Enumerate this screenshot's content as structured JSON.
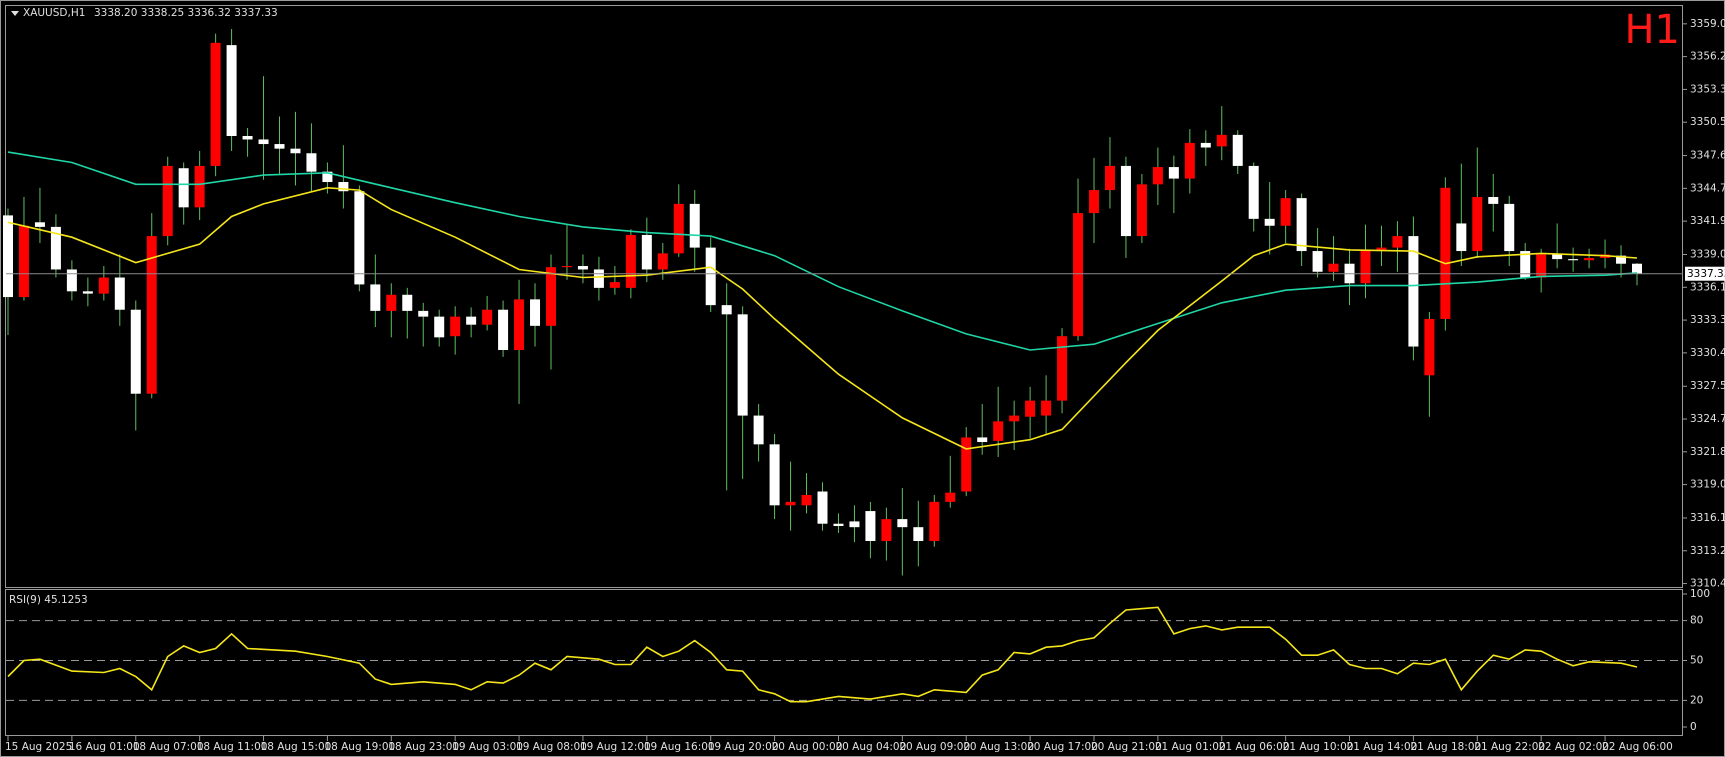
{
  "chart_data": [
    {
      "type": "candlestick",
      "title": "XAUUSD,H1",
      "ohlc": "3338.20 3338.25 3336.32 3337.33",
      "timeframe": "H1",
      "timeframe_color": "#ff1a1a",
      "bull_color": "#ff0000",
      "bear_color": "#ffffff",
      "wick_color": "#5fbf5f",
      "price_line_color": "#8a8a8a",
      "categories": [
        "15 Aug 2025",
        null,
        null,
        null,
        "16 Aug 01:00",
        null,
        null,
        null,
        "18 Aug 07:00",
        null,
        null,
        null,
        "18 Aug 11:00",
        null,
        null,
        null,
        "18 Aug 15:00",
        null,
        null,
        null,
        "18 Aug 19:00",
        null,
        null,
        null,
        "18 Aug 23:00",
        null,
        null,
        null,
        "19 Aug 03:00",
        null,
        null,
        null,
        "19 Aug 08:00",
        null,
        null,
        null,
        "19 Aug 12:00",
        null,
        null,
        null,
        "19 Aug 16:00",
        null,
        null,
        null,
        "19 Aug 20:00",
        null,
        null,
        null,
        "20 Aug 00:00",
        null,
        null,
        null,
        "20 Aug 04:00",
        null,
        null,
        null,
        "20 Aug 09:00",
        null,
        null,
        null,
        "20 Aug 13:00",
        null,
        null,
        null,
        "20 Aug 17:00",
        null,
        null,
        null,
        "20 Aug 21:00",
        null,
        null,
        null,
        "21 Aug 01:00",
        null,
        null,
        null,
        "21 Aug 06:00",
        null,
        null,
        null,
        "21 Aug 10:00",
        null,
        null,
        null,
        "21 Aug 14:00",
        null,
        null,
        null,
        "21 Aug 18:00",
        null,
        null,
        null,
        "21 Aug 22:00",
        null,
        null,
        null,
        "22 Aug 02:00",
        null,
        null,
        null,
        "22 Aug 06:00",
        null,
        null
      ],
      "open": [
        3342.4,
        3335.3,
        3341.8,
        3341.4,
        3337.7,
        3335.8,
        3335.6,
        3337.0,
        3334.2,
        3326.9,
        3340.6,
        3346.5,
        3343.1,
        3346.7,
        3357.2,
        3349.3,
        3349.0,
        3348.6,
        3348.2,
        3347.8,
        3346.2,
        3345.3,
        3344.5,
        3336.4,
        3334.1,
        3335.5,
        3334.1,
        3333.6,
        3331.9,
        3333.6,
        3332.9,
        3334.2,
        3330.7,
        3335.1,
        3332.8,
        3337.9,
        3338.0,
        3337.7,
        3336.1,
        3336.1,
        3340.7,
        3337.7,
        3339.1,
        3343.4,
        3339.6,
        3334.6,
        3333.8,
        3325.0,
        3322.5,
        3317.2,
        3317.2,
        3318.4,
        3315.6,
        3315.8,
        3316.7,
        3314.1,
        3316.0,
        3315.3,
        3314.1,
        3317.5,
        3318.4,
        3323.1,
        3322.8,
        3324.5,
        3324.9,
        3325.0,
        3326.3,
        3331.9,
        3342.6,
        3344.6,
        3346.7,
        3340.6,
        3345.1,
        3346.6,
        3345.6,
        3348.7,
        3348.4,
        3349.4,
        3346.7,
        3342.1,
        3341.5,
        3343.9,
        3339.3,
        3337.5,
        3338.2,
        3336.5,
        3339.4,
        3339.6,
        3340.6,
        3328.5,
        3333.4,
        3341.7,
        3339.3,
        3344.0,
        3343.4,
        3339.3,
        3337.0,
        3339.0,
        3338.6,
        3338.5,
        3338.7,
        3338.9,
        3338.2
      ],
      "high": [
        3343,
        3344,
        3344.8,
        3342.5,
        3338.5,
        3337,
        3338,
        3339,
        3335,
        3342.6,
        3347.5,
        3347,
        3348,
        3358.2,
        3358.6,
        3350,
        3354.5,
        3351,
        3351.4,
        3350.4,
        3347,
        3348.5,
        3345,
        3339,
        3336.5,
        3336.1,
        3334.8,
        3334.2,
        3334.5,
        3334.4,
        3335.4,
        3335,
        3336.8,
        3336.5,
        3339,
        3341.6,
        3339,
        3338.8,
        3338,
        3341.2,
        3342.2,
        3340,
        3345.1,
        3344.6,
        3340.5,
        3336.5,
        3334.5,
        3326,
        3323.4,
        3321,
        3320,
        3319.2,
        3316.5,
        3317.2,
        3317.5,
        3317,
        3318.7,
        3317.6,
        3318.1,
        3321.5,
        3324,
        3326,
        3327.5,
        3326.3,
        3327.5,
        3328.5,
        3332.6,
        3345.6,
        3347.4,
        3349.2,
        3347.5,
        3346,
        3348.3,
        3347.6,
        3349.9,
        3349.8,
        3351.9,
        3349.8,
        3347,
        3345.3,
        3344.6,
        3344.3,
        3341.3,
        3340.6,
        3339.5,
        3341.6,
        3341.5,
        3341.9,
        3342.3,
        3334,
        3345.7,
        3346.9,
        3348.3,
        3346,
        3344.1,
        3340,
        3339.5,
        3341.7,
        3339.6,
        3339.5,
        3340.3,
        3339.8,
        3338.25
      ],
      "low": [
        3332,
        3335,
        3340,
        3337,
        3335,
        3334.5,
        3335,
        3332.8,
        3323.7,
        3326.5,
        3339.8,
        3341.6,
        3342,
        3345.8,
        3348,
        3347.5,
        3345.5,
        3346,
        3345,
        3344.5,
        3344.3,
        3343,
        3335.8,
        3332.7,
        3331.8,
        3331.7,
        3331,
        3331,
        3330.3,
        3331.8,
        3332.4,
        3330.1,
        3326,
        3331,
        3329,
        3336.8,
        3336.5,
        3335,
        3335.5,
        3335.2,
        3336.6,
        3336.8,
        3338.8,
        3337.5,
        3334,
        3318.5,
        3319.5,
        3321,
        3316,
        3315,
        3316.5,
        3315,
        3314.8,
        3314,
        3312.6,
        3312.4,
        3311.1,
        3311.9,
        3313.6,
        3317,
        3318,
        3321.6,
        3321.4,
        3322,
        3323,
        3323.4,
        3325.2,
        3331.5,
        3340,
        3343,
        3338.7,
        3340,
        3343.3,
        3342.6,
        3344.3,
        3346.7,
        3347.2,
        3346,
        3341,
        3339,
        3340,
        3338,
        3337,
        3336.7,
        3334.6,
        3335.2,
        3338,
        3337.5,
        3329.8,
        3324.9,
        3332.4,
        3338,
        3338.7,
        3341,
        3338,
        3336.8,
        3335.7,
        3337.8,
        3337.5,
        3337.8,
        3337.8,
        3337,
        3336.32
      ],
      "close": [
        3335.3,
        3341.5,
        3341.4,
        3337.7,
        3335.8,
        3335.6,
        3337.0,
        3334.2,
        3326.9,
        3340.6,
        3346.7,
        3343.1,
        3346.7,
        3357.4,
        3349.3,
        3349.0,
        3348.6,
        3348.2,
        3347.8,
        3346.2,
        3345.3,
        3344.5,
        3336.4,
        3334.1,
        3335.5,
        3334.1,
        3333.6,
        3331.8,
        3333.6,
        3332.9,
        3334.2,
        3330.7,
        3335.1,
        3332.8,
        3337.9,
        3338.0,
        3337.7,
        3336.1,
        3336.6,
        3340.7,
        3337.7,
        3339.1,
        3343.4,
        3339.6,
        3334.6,
        3333.8,
        3325.0,
        3322.5,
        3317.2,
        3317.5,
        3318.1,
        3315.6,
        3315.4,
        3315.3,
        3314.1,
        3316.0,
        3315.3,
        3314.1,
        3317.5,
        3318.3,
        3323.1,
        3322.7,
        3324.5,
        3325.0,
        3326.3,
        3326.3,
        3331.9,
        3342.6,
        3344.6,
        3346.7,
        3340.6,
        3345.1,
        3346.6,
        3345.6,
        3348.7,
        3348.3,
        3349.4,
        3346.7,
        3342.1,
        3341.5,
        3343.9,
        3339.3,
        3337.5,
        3338.2,
        3336.5,
        3339.4,
        3339.6,
        3340.6,
        3331.0,
        3333.4,
        3344.8,
        3339.3,
        3344.0,
        3343.4,
        3339.3,
        3337.0,
        3339.0,
        3338.6,
        3338.5,
        3338.7,
        3339.0,
        3338.2,
        3337.33
      ],
      "lines": [
        {
          "color": "#1fd6a6",
          "x": [
            0,
            4,
            8,
            12,
            16,
            20,
            24,
            28,
            32,
            36,
            40,
            44,
            48,
            52,
            56,
            60,
            64,
            68,
            72,
            76,
            80,
            84,
            88,
            92,
            96,
            100,
            102
          ],
          "values": [
            3347.9,
            3347.0,
            3345.1,
            3345.1,
            3345.9,
            3346.1,
            3344.8,
            3343.5,
            3342.3,
            3341.4,
            3340.9,
            3340.6,
            3338.9,
            3336.2,
            3334.1,
            3332.1,
            3330.7,
            3331.2,
            3333.0,
            3334.8,
            3335.9,
            3336.3,
            3336.3,
            3336.6,
            3337.1,
            3337.2,
            3337.4
          ]
        },
        {
          "color": "#f5e61a",
          "x": [
            0,
            4,
            8,
            10,
            12,
            14,
            16,
            20,
            22,
            24,
            28,
            32,
            36,
            40,
            44,
            46,
            48,
            52,
            56,
            60,
            64,
            66,
            68,
            70,
            72,
            76,
            78,
            80,
            84,
            88,
            90,
            92,
            96,
            100,
            102
          ],
          "values": [
            3341.8,
            3340.5,
            3338.3,
            3339.1,
            3339.9,
            3342.3,
            3343.4,
            3344.8,
            3344.6,
            3342.9,
            3340.5,
            3337.7,
            3337.0,
            3337.2,
            3337.9,
            3336.0,
            3333.4,
            3328.6,
            3324.8,
            3322.1,
            3322.9,
            3323.8,
            3326.7,
            3329.6,
            3332.4,
            3336.7,
            3338.9,
            3339.9,
            3339.4,
            3339.3,
            3338.2,
            3338.8,
            3339.1,
            3338.9,
            3338.7
          ]
        }
      ],
      "ylim": [
        3310.1,
        3360.6
      ],
      "yticks": [
        {
          "value": 3359.05,
          "label": "3359.05"
        },
        {
          "value": 3356.2,
          "label": "3356.20"
        },
        {
          "value": 3353.35,
          "label": "3353.35"
        },
        {
          "value": 3350.5,
          "label": "3350.50"
        },
        {
          "value": 3347.6,
          "label": "3347.60"
        },
        {
          "value": 3344.75,
          "label": "3344.75"
        },
        {
          "value": 3341.9,
          "label": "3341.90"
        },
        {
          "value": 3339.0,
          "label": "3339.00"
        },
        {
          "value": 3336.15,
          "label": "3336.15"
        },
        {
          "value": 3333.3,
          "label": "3333.30"
        },
        {
          "value": 3330.45,
          "label": "3330.45"
        },
        {
          "value": 3327.55,
          "label": "3327.55"
        },
        {
          "value": 3324.7,
          "label": "3324.70"
        },
        {
          "value": 3321.85,
          "label": "3321.85"
        },
        {
          "value": 3319.0,
          "label": "3319.00"
        },
        {
          "value": 3316.1,
          "label": "3316.10"
        },
        {
          "value": 3313.25,
          "label": "3313.25"
        },
        {
          "value": 3310.4,
          "label": "3310.40"
        }
      ],
      "grid": false
    },
    {
      "type": "line",
      "title": "RSI(9) 45.1253",
      "color": "#f5e61a",
      "level_color": "#9a9a9a",
      "x": [
        0,
        1,
        2,
        4,
        6,
        7,
        8,
        9,
        10,
        11,
        12,
        13,
        14,
        15,
        18,
        20,
        22,
        23,
        24,
        26,
        28,
        29,
        30,
        31,
        32,
        33,
        34,
        35,
        37,
        38,
        39,
        40,
        41,
        42,
        43,
        44,
        45,
        46,
        47,
        48,
        49,
        50,
        52,
        54,
        56,
        57,
        58,
        60,
        61,
        62,
        63,
        64,
        65,
        66,
        67,
        68,
        69,
        70,
        72,
        73,
        74,
        75,
        76,
        77,
        79,
        80,
        81,
        82,
        83,
        84,
        85,
        86,
        87,
        88,
        89,
        90,
        91,
        92,
        93,
        94,
        95,
        96,
        97,
        98,
        99,
        101,
        102
      ],
      "values": [
        38,
        50,
        51,
        42,
        41,
        44,
        38,
        28,
        53,
        61,
        56,
        59,
        70,
        59,
        57,
        53,
        48,
        36,
        32,
        34,
        32,
        28,
        34,
        33,
        39,
        48,
        43,
        53,
        51,
        47,
        47,
        60,
        53,
        57,
        65,
        56,
        43,
        42,
        28,
        25,
        19,
        19,
        23,
        21,
        25,
        23,
        28,
        26,
        39,
        43,
        56,
        55,
        60,
        61,
        65,
        67,
        78,
        88,
        90,
        70,
        74,
        76,
        73,
        75,
        75,
        66,
        54,
        54,
        58,
        47,
        44,
        44,
        40,
        48,
        47,
        51,
        28,
        42,
        54,
        51,
        58,
        57,
        51,
        46,
        49,
        48,
        45.1253
      ],
      "ylim": [
        -6,
        103
      ],
      "yticks": [
        100,
        80,
        50,
        20,
        0
      ],
      "levels": [
        80,
        50,
        20
      ]
    }
  ]
}
